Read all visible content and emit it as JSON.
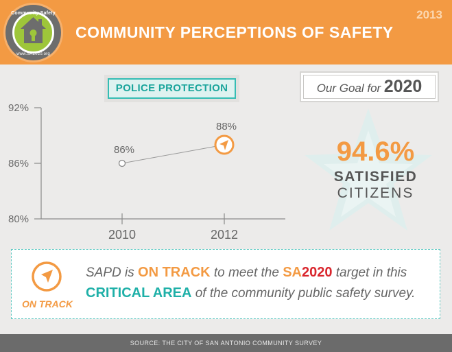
{
  "header": {
    "title": "COMMUNITY PERCEPTIONS OF SAFETY",
    "year": "2013",
    "badge_top": "Community Safety",
    "badge_bottom": "www.SA2020.org",
    "bg_color": "#f39a43"
  },
  "chart_label": "POLICE PROTECTION",
  "chart_data": {
    "type": "line",
    "x": [
      "2010",
      "2012"
    ],
    "series": [
      {
        "values": [
          86,
          88
        ]
      }
    ],
    "data_labels": [
      "86%",
      "88%"
    ],
    "y_ticks": [
      "92%",
      "86%",
      "80%"
    ],
    "ylim": [
      80,
      92
    ],
    "xlabel": "",
    "ylabel": "",
    "grid": false,
    "marker_last": "on-track-icon"
  },
  "goal": {
    "prefix": "Our Goal for",
    "year": "2020",
    "value": "94.6%",
    "label_line1": "SATISFIED",
    "label_line2": "CITIZENS"
  },
  "status": {
    "icon": "on-track-icon",
    "icon_label": "ON TRACK",
    "seg1": "SAPD is ",
    "hl1": "ON TRACK",
    "seg2": " to meet the ",
    "hl2a": "SA",
    "hl2b": "2020",
    "seg3": " target in this",
    "hl3": "CRITICAL AREA",
    "seg4": " of the community public safety survey."
  },
  "footer": "SOURCE: THE CITY OF SAN ANTONIO COMMUNITY SURVEY",
  "colors": {
    "accent": "#f39a43",
    "teal": "#1fb0a8",
    "red": "#d9262d",
    "text": "#555555"
  }
}
